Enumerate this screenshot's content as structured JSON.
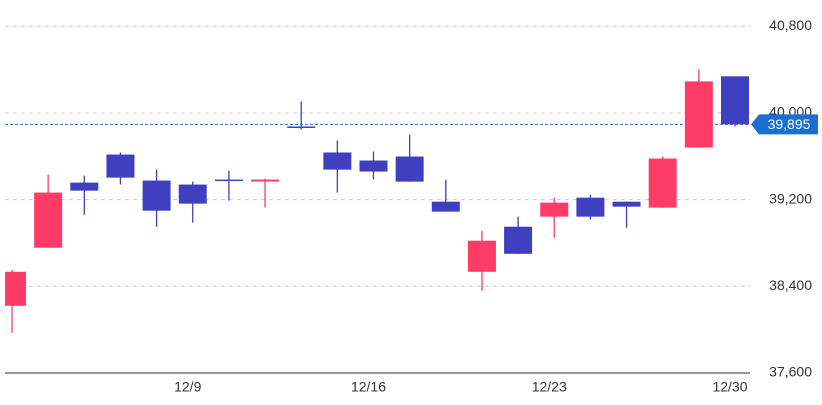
{
  "chart_data": {
    "type": "candlestick",
    "categories": [
      null,
      null,
      null,
      null,
      null,
      "12/9",
      null,
      null,
      null,
      null,
      "12/16",
      null,
      null,
      null,
      null,
      "12/23",
      null,
      null,
      null,
      null,
      "12/30"
    ],
    "open": [
      38220,
      38756,
      39357,
      39616,
      39376,
      39339,
      39385,
      39367,
      39875,
      39635,
      39561,
      39598,
      39181,
      38534,
      38950,
      39043,
      39218,
      39181,
      39126,
      39681,
      40338
    ],
    "high": [
      38553,
      39431,
      39422,
      39635,
      39477,
      39366,
      39468,
      39394,
      40106,
      39746,
      39644,
      39801,
      39385,
      38913,
      39043,
      39218,
      39246,
      39181,
      39598,
      40402,
      40338
    ],
    "low": [
      37970,
      38756,
      39061,
      39339,
      38950,
      38987,
      39191,
      39126,
      39847,
      39265,
      39385,
      39366,
      39089,
      38358,
      38700,
      38848,
      39015,
      38941,
      39126,
      39681,
      39875
    ],
    "close": [
      38534,
      39265,
      39283,
      39403,
      39098,
      39163,
      39376,
      39385,
      39866,
      39477,
      39459,
      39366,
      39089,
      38821,
      38700,
      39172,
      39043,
      39135,
      39579,
      40291,
      39895
    ],
    "up_color": "#ff3b66",
    "down_color": "#3f3fbf",
    "last_price": {
      "value": 39895,
      "label": "39,895"
    },
    "ylim": [
      37600,
      40950
    ],
    "yticks": [
      {
        "value": 37600,
        "label": "37,600"
      },
      {
        "value": 38400,
        "label": "38,400"
      },
      {
        "value": 39200,
        "label": "39,200"
      },
      {
        "value": 40000,
        "label": "40,000"
      },
      {
        "value": 40800,
        "label": "40,800"
      }
    ],
    "grid": true
  }
}
